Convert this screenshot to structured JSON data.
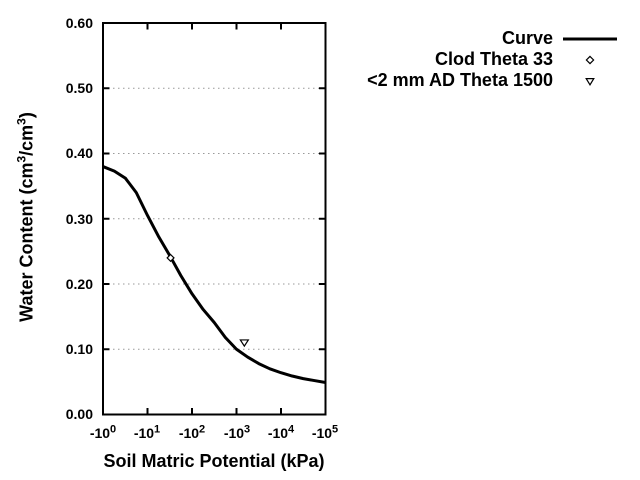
{
  "chart_data": {
    "type": "line",
    "title": "",
    "xlabel": "Soil Matric Potential (kPa)",
    "ylabel": "Water Content (cm3/cm3)",
    "ylabel_parts": [
      "Water Content (cm",
      "3",
      "/cm",
      "3",
      ")"
    ],
    "x_axis": {
      "scale": "log-negative",
      "unit": "kPa",
      "decade_range": [
        0,
        5
      ],
      "tick_decades": [
        0,
        1,
        2,
        3,
        4,
        5
      ],
      "tick_labels": [
        {
          "base": "-10",
          "exp": "0"
        },
        {
          "base": "-10",
          "exp": "1"
        },
        {
          "base": "-10",
          "exp": "2"
        },
        {
          "base": "-10",
          "exp": "3"
        },
        {
          "base": "-10",
          "exp": "4"
        },
        {
          "base": "-10",
          "exp": "5"
        }
      ]
    },
    "y_axis": {
      "min": 0.0,
      "max": 0.6,
      "tick_values": [
        0.6,
        0.5,
        0.4,
        0.3,
        0.2,
        0.1,
        0.0
      ],
      "tick_labels": [
        "0.60",
        "0.50",
        "0.40",
        "0.30",
        "0.20",
        "0.10",
        "0.00"
      ],
      "grid_values": [
        0.1,
        0.2,
        0.3,
        0.4,
        0.5
      ]
    },
    "grid": {
      "orientation": "horizontal",
      "style": "dotted",
      "color": "#999999"
    },
    "colors": {
      "foreground": "#000000",
      "background": "#ffffff"
    },
    "legend": {
      "position": "top-right",
      "entries": [
        {
          "label": "Curve",
          "marker": "line"
        },
        {
          "label": "Clod Theta 33",
          "marker": "open-diamond"
        },
        {
          "label": "<2 mm AD Theta 1500",
          "marker": "open-triangle-down"
        }
      ]
    },
    "series": [
      {
        "name": "Curve",
        "type": "line",
        "color": "#000000",
        "points_kPa_theta": [
          [
            -1,
            0.38
          ],
          [
            -1.8,
            0.373
          ],
          [
            -3.2,
            0.362
          ],
          [
            -5.6,
            0.34
          ],
          [
            -10,
            0.305
          ],
          [
            -18,
            0.272
          ],
          [
            -32,
            0.243
          ],
          [
            -56,
            0.213
          ],
          [
            -100,
            0.185
          ],
          [
            -178,
            0.161
          ],
          [
            -316,
            0.141
          ],
          [
            -562,
            0.118
          ],
          [
            -1000,
            0.1
          ],
          [
            -1780,
            0.088
          ],
          [
            -3160,
            0.078
          ],
          [
            -5620,
            0.07
          ],
          [
            -10000,
            0.064
          ],
          [
            -17800,
            0.059
          ],
          [
            -31600,
            0.055
          ],
          [
            -56200,
            0.052
          ],
          [
            -100000,
            0.049
          ]
        ]
      },
      {
        "name": "Clod Theta 33",
        "type": "scatter",
        "marker": "open-diamond",
        "color": "#000000",
        "points_kPa_theta": [
          [
            -33,
            0.24
          ]
        ]
      },
      {
        "name": "<2 mm AD Theta 1500",
        "type": "scatter",
        "marker": "open-triangle-down",
        "color": "#000000",
        "points_kPa_theta": [
          [
            -1500,
            0.11
          ]
        ]
      }
    ]
  }
}
